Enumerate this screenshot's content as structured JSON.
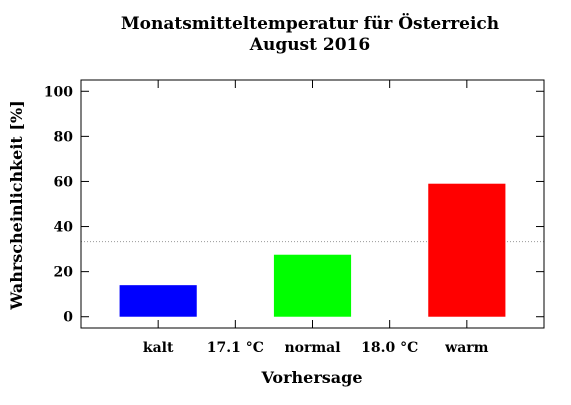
{
  "chart_data": {
    "type": "bar",
    "title": "Monatsmitteltemperatur für Österreich",
    "subtitle": "August 2016",
    "xlabel": "Vorhersage",
    "ylabel": "Wahrscheinlichkeit [%]",
    "ylim": [
      -5,
      105
    ],
    "yticks": [
      0,
      20,
      40,
      60,
      80,
      100
    ],
    "categories": [
      "kalt",
      "normal",
      "warm"
    ],
    "values": [
      14,
      27.5,
      59
    ],
    "bar_colors": [
      "#0000ff",
      "#00ff00",
      "#ff0000"
    ],
    "thresholds": [
      "17.1 °C",
      "18.0 °C"
    ],
    "reference_line": 33.3,
    "reference_line_color": "#999999",
    "grid": false,
    "legend": "none"
  }
}
